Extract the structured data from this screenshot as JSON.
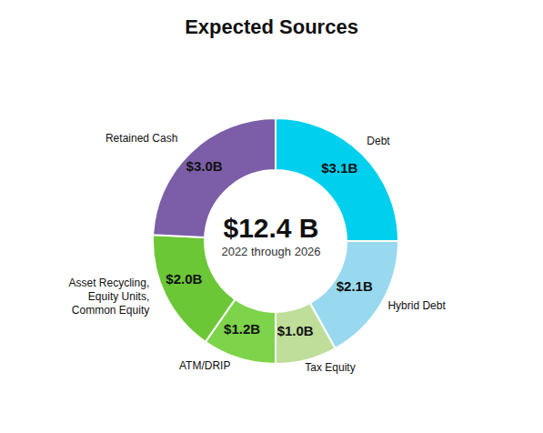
{
  "chart_data": {
    "type": "donut",
    "title": "Expected Sources",
    "annotations": [
      "$12.4 B",
      "2022 through 2026"
    ],
    "categories": [
      "Debt",
      "Hybrid Debt",
      "Tax Equity",
      "ATM/DRIP",
      "Asset Recycling,\nEquity Units,\nCommon Equity",
      "Retained Cash"
    ],
    "values": [
      3.1,
      2.1,
      1.0,
      1.2,
      2.0,
      3.0
    ],
    "value_labels": [
      "$3.1B",
      "$2.1B",
      "$1.0B",
      "$1.2B",
      "$2.0B",
      "$3.0B"
    ],
    "colors": [
      "#00CFEE",
      "#99D9F0",
      "#BFDE9A",
      "#7DD44A",
      "#6CC736",
      "#7B5EA7"
    ],
    "data_labels": true
  }
}
